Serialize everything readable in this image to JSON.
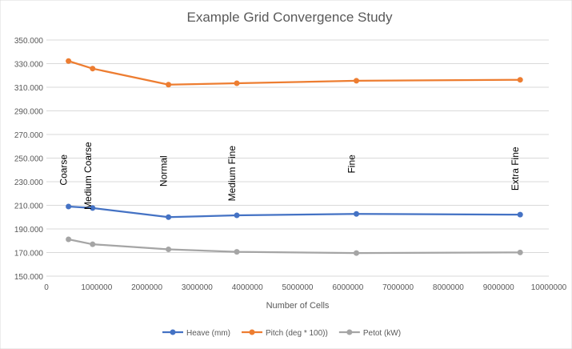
{
  "chart_data": {
    "type": "line",
    "title": "Example Grid Convergence Study",
    "xlabel": "Number of Cells",
    "ylabel": "",
    "xlim": [
      0,
      10000000
    ],
    "ylim": [
      150,
      350
    ],
    "xticks": [
      0,
      1000000,
      2000000,
      3000000,
      4000000,
      5000000,
      6000000,
      7000000,
      8000000,
      9000000,
      10000000
    ],
    "xtick_labels": [
      "0",
      "1000000",
      "2000000",
      "3000000",
      "4000000",
      "5000000",
      "6000000",
      "7000000",
      "8000000",
      "9000000",
      "10000000"
    ],
    "yticks": [
      150,
      170,
      190,
      210,
      230,
      250,
      270,
      290,
      310,
      330,
      350
    ],
    "ytick_labels": [
      "150.000",
      "170.000",
      "190.000",
      "210.000",
      "230.000",
      "250.000",
      "270.000",
      "290.000",
      "310.000",
      "330.000",
      "350.000"
    ],
    "grid": "horizontal",
    "legend_position": "bottom",
    "x": [
      440000,
      920000,
      2430000,
      3790000,
      6170000,
      9430000
    ],
    "series": [
      {
        "name": "Heave (mm)",
        "color": "#4472C4",
        "values": [
          209,
          207.7,
          200,
          201.5,
          202.7,
          202.1
        ]
      },
      {
        "name": "Pitch (deg * 100))",
        "color": "#ED7D31",
        "values": [
          332.2,
          325.8,
          312.2,
          313.4,
          315.5,
          316.3
        ]
      },
      {
        "name": "Petot (kW)",
        "color": "#A5A5A5",
        "values": [
          181.2,
          177,
          172.7,
          170.6,
          169.6,
          170.1
        ]
      }
    ],
    "annotations": [
      {
        "text": "Coarse",
        "x": 440000,
        "y": 240
      },
      {
        "text": "Medium Coarse",
        "x": 920000,
        "y": 235
      },
      {
        "text": "Normal",
        "x": 2430000,
        "y": 239
      },
      {
        "text": "Medium Fine",
        "x": 3790000,
        "y": 237
      },
      {
        "text": "Fine",
        "x": 6170000,
        "y": 245
      },
      {
        "text": "Extra Fine",
        "x": 9430000,
        "y": 241
      }
    ]
  }
}
